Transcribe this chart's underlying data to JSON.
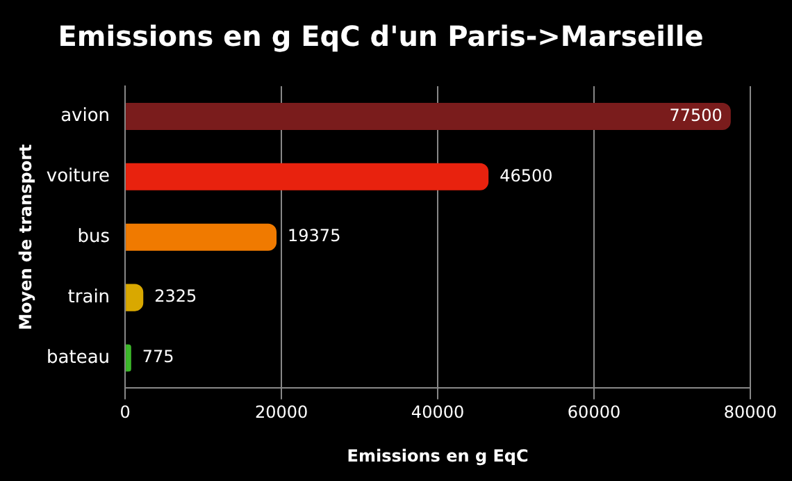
{
  "chart_data": {
    "type": "bar",
    "orientation": "horizontal",
    "title": "Emissions en g EqC d'un Paris->Marseille",
    "xlabel": "Emissions en g EqC",
    "ylabel": "Moyen de transport",
    "categories": [
      "avion",
      "voiture",
      "bus",
      "train",
      "bateau"
    ],
    "values": [
      77500,
      46500,
      19375,
      2325,
      775
    ],
    "colors": [
      "#7a1c1c",
      "#e8220e",
      "#f07a00",
      "#d9a800",
      "#3cb82a"
    ],
    "xlim": [
      0,
      80000
    ],
    "xticks": [
      0,
      20000,
      40000,
      60000,
      80000
    ],
    "grid": "x",
    "legend": false,
    "data_labels": true
  }
}
